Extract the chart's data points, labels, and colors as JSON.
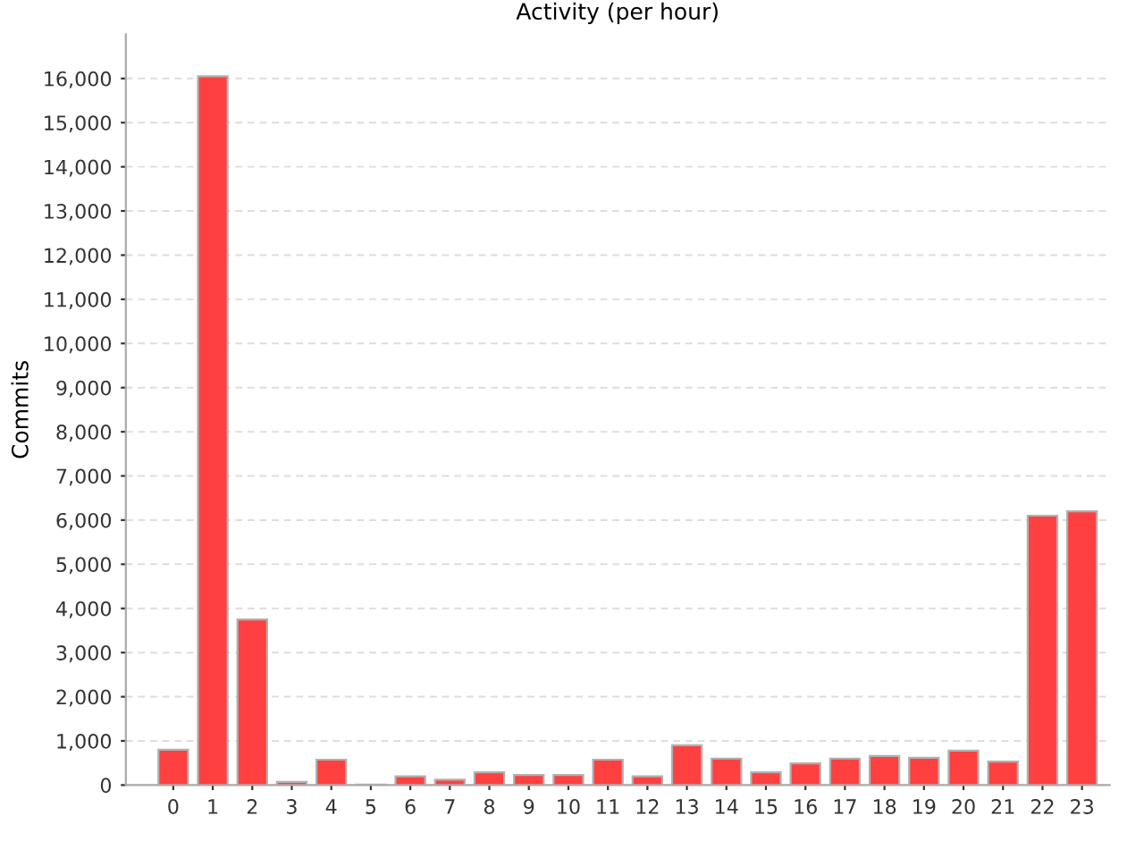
{
  "chart_data": {
    "type": "bar",
    "title": "Activity (per hour)",
    "ylabel": "Commits",
    "categories": [
      "0",
      "1",
      "2",
      "3",
      "4",
      "5",
      "6",
      "7",
      "8",
      "9",
      "10",
      "11",
      "12",
      "13",
      "14",
      "15",
      "16",
      "17",
      "18",
      "19",
      "20",
      "21",
      "22",
      "23"
    ],
    "values": [
      800,
      16050,
      3750,
      70,
      575,
      10,
      200,
      120,
      290,
      230,
      230,
      575,
      200,
      900,
      600,
      290,
      490,
      600,
      660,
      620,
      780,
      530,
      6100,
      6200
    ],
    "color": "#ff4040",
    "ylim": [
      0,
      17000
    ],
    "yticks": [
      {
        "value": 0,
        "label": "0"
      },
      {
        "value": 1000,
        "label": "1,000"
      },
      {
        "value": 2000,
        "label": "2,000"
      },
      {
        "value": 3000,
        "label": "3,000"
      },
      {
        "value": 4000,
        "label": "4,000"
      },
      {
        "value": 5000,
        "label": "5,000"
      },
      {
        "value": 6000,
        "label": "6,000"
      },
      {
        "value": 7000,
        "label": "7,000"
      },
      {
        "value": 8000,
        "label": "8,000"
      },
      {
        "value": 9000,
        "label": "9,000"
      },
      {
        "value": 10000,
        "label": "10,000"
      },
      {
        "value": 11000,
        "label": "11,000"
      },
      {
        "value": 12000,
        "label": "12,000"
      },
      {
        "value": 13000,
        "label": "13,000"
      },
      {
        "value": 14000,
        "label": "14,000"
      },
      {
        "value": 15000,
        "label": "15,000"
      },
      {
        "value": 16000,
        "label": "16,000"
      }
    ],
    "grid": "y"
  }
}
